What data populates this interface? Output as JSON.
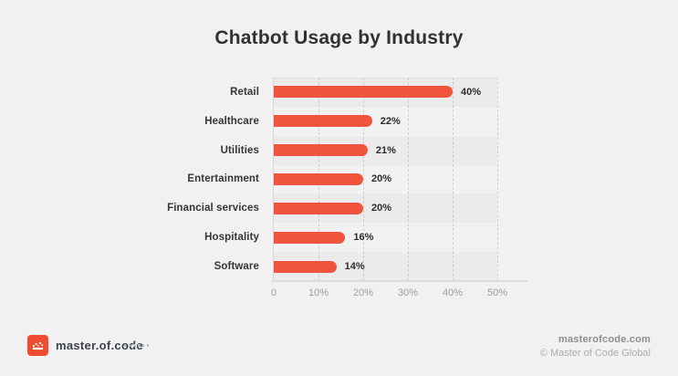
{
  "title": "Chatbot Usage by Industry",
  "chart_data": {
    "type": "bar",
    "orientation": "horizontal",
    "title": "Chatbot Usage by Industry",
    "categories": [
      "Retail",
      "Healthcare",
      "Utilities",
      "Entertainment",
      "Financial services",
      "Hospitality",
      "Software"
    ],
    "values": [
      40,
      22,
      21,
      20,
      20,
      16,
      14
    ],
    "value_labels": [
      "40%",
      "22%",
      "21%",
      "20%",
      "20%",
      "16%",
      "14%"
    ],
    "xticks": [
      "0",
      "10%",
      "20%",
      "30%",
      "40%",
      "50%"
    ],
    "xtick_values": [
      0,
      10,
      20,
      30,
      40,
      50
    ],
    "xlim": [
      0,
      50
    ],
    "unit": "%",
    "bar_color": "#F0543C",
    "grid": "dashed-vertical",
    "legend": "none"
  },
  "footer": {
    "logo_text": "master.of.code",
    "website": "masterofcode.com",
    "copyright": "© Master of Code Global"
  },
  "colors": {
    "background": "#f1f1f1",
    "accent": "#F0543C",
    "logo_square": "#EF4B31",
    "title_text": "#2f3134",
    "axis_text": "#9d9d9d"
  }
}
